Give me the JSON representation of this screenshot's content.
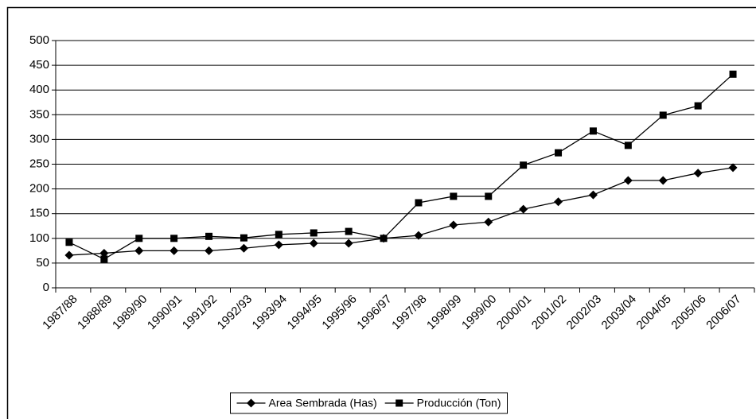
{
  "chart_data": {
    "type": "line",
    "categories": [
      "1987/88",
      "1988/89",
      "1989/90",
      "1990/91",
      "1991/92",
      "1992/93",
      "1993/94",
      "1994/95",
      "1995/96",
      "1996/97",
      "1997/98",
      "1998/99",
      "1999/00",
      "2000/01",
      "2001/02",
      "2002/03",
      "2003/04",
      "2004/05",
      "2005/06",
      "2006/07"
    ],
    "series": [
      {
        "name": "Area Sembrada (Has)",
        "color": "#000000",
        "marker": "diamond",
        "values": [
          66,
          70,
          75,
          75,
          75,
          80,
          87,
          90,
          90,
          100,
          106,
          127,
          133,
          159,
          174,
          188,
          217,
          217,
          232,
          243
        ]
      },
      {
        "name": "Producción (Ton)",
        "color": "#000000",
        "marker": "square",
        "values": [
          92,
          58,
          100,
          100,
          104,
          101,
          108,
          111,
          114,
          100,
          172,
          185,
          185,
          248,
          273,
          317,
          288,
          349,
          368,
          432
        ]
      }
    ],
    "ylim": [
      0,
      500
    ],
    "yticks": [
      0,
      50,
      100,
      150,
      200,
      250,
      300,
      350,
      400,
      450,
      500
    ],
    "grid": true,
    "legend": "bottom"
  }
}
